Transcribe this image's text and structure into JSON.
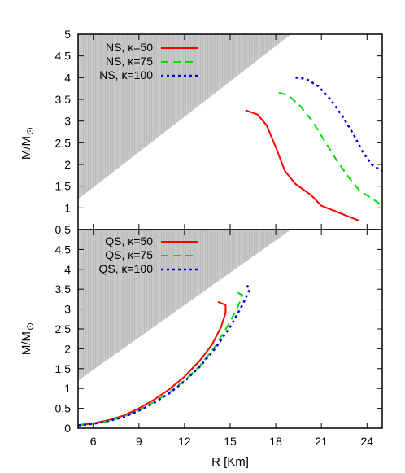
{
  "chart_data": [
    {
      "panel": "top",
      "type": "line",
      "xlim": [
        5,
        25
      ],
      "ylim": [
        0.5,
        5
      ],
      "y_ticks": [
        "0.5",
        "1",
        "1.5",
        "2",
        "2.5",
        "3",
        "3.5",
        "4",
        "4.5",
        "5"
      ],
      "ylabel_main": "M/M",
      "ylabel_sub": "⊙",
      "legend_position": "top-left",
      "shaded_region": {
        "upper_left_boundary": [
          [
            5,
            1.2
          ],
          [
            19,
            5
          ]
        ]
      },
      "series": [
        {
          "name": "NS, κ=50",
          "color": "#ff0000",
          "dash": "solid",
          "points": [
            [
              16,
              3.25
            ],
            [
              16.8,
              3.15
            ],
            [
              17.4,
              2.9
            ],
            [
              18,
              2.4
            ],
            [
              18.6,
              1.85
            ],
            [
              19.3,
              1.55
            ],
            [
              20.3,
              1.3
            ],
            [
              21,
              1.05
            ],
            [
              23.5,
              0.7
            ]
          ]
        },
        {
          "name": "NS, κ=75",
          "color": "#00dd00",
          "dash": "dashed",
          "points": [
            [
              18.2,
              3.65
            ],
            [
              18.8,
              3.6
            ],
            [
              19.6,
              3.35
            ],
            [
              20.4,
              3.0
            ],
            [
              21.2,
              2.55
            ],
            [
              22.0,
              2.1
            ],
            [
              22.8,
              1.7
            ],
            [
              23.5,
              1.4
            ],
            [
              24.4,
              1.2
            ],
            [
              25,
              1.05
            ]
          ]
        },
        {
          "name": "NS, κ=100",
          "color": "#0000dd",
          "dash": "dotted",
          "points": [
            [
              19.3,
              4.0
            ],
            [
              20.0,
              3.97
            ],
            [
              20.8,
              3.8
            ],
            [
              21.6,
              3.5
            ],
            [
              22.4,
              3.1
            ],
            [
              23.1,
              2.7
            ],
            [
              23.7,
              2.3
            ],
            [
              24.3,
              2.0
            ],
            [
              25,
              1.85
            ]
          ]
        }
      ]
    },
    {
      "panel": "bottom",
      "type": "line",
      "xlabel": "R [Km]",
      "xlim": [
        5,
        25
      ],
      "ylim": [
        0,
        5
      ],
      "x_ticks": [
        "6",
        "9",
        "12",
        "15",
        "18",
        "21",
        "24"
      ],
      "y_ticks": [
        "0",
        "0.5",
        "1",
        "1.5",
        "2",
        "2.5",
        "3",
        "3.5",
        "4",
        "4.5"
      ],
      "ylabel_main": "M/M",
      "ylabel_sub": "⊙",
      "legend_position": "top-left",
      "shaded_region": {
        "upper_left_boundary": [
          [
            5,
            1.2
          ],
          [
            19,
            5
          ]
        ]
      },
      "series": [
        {
          "name": "QS, κ=50",
          "color": "#ff0000",
          "dash": "solid",
          "points": [
            [
              5,
              0.08
            ],
            [
              6,
              0.12
            ],
            [
              7,
              0.2
            ],
            [
              8,
              0.32
            ],
            [
              9,
              0.5
            ],
            [
              10,
              0.72
            ],
            [
              11,
              0.98
            ],
            [
              12,
              1.3
            ],
            [
              13,
              1.7
            ],
            [
              13.8,
              2.1
            ],
            [
              14.4,
              2.55
            ],
            [
              14.7,
              2.9
            ],
            [
              14.7,
              3.1
            ],
            [
              14.2,
              3.18
            ]
          ]
        },
        {
          "name": "QS, κ=75",
          "color": "#00dd00",
          "dash": "dashed",
          "points": [
            [
              5,
              0.07
            ],
            [
              6,
              0.11
            ],
            [
              7,
              0.18
            ],
            [
              8,
              0.29
            ],
            [
              9,
              0.45
            ],
            [
              10,
              0.66
            ],
            [
              11,
              0.9
            ],
            [
              12,
              1.2
            ],
            [
              13,
              1.57
            ],
            [
              14,
              2.05
            ],
            [
              14.8,
              2.55
            ],
            [
              15.5,
              3.05
            ],
            [
              15.8,
              3.35
            ],
            [
              15.3,
              3.45
            ]
          ]
        },
        {
          "name": "QS, κ=100",
          "color": "#0000dd",
          "dash": "dotted",
          "points": [
            [
              5,
              0.07
            ],
            [
              6,
              0.11
            ],
            [
              7,
              0.18
            ],
            [
              8,
              0.28
            ],
            [
              9,
              0.44
            ],
            [
              10,
              0.64
            ],
            [
              11,
              0.88
            ],
            [
              12,
              1.18
            ],
            [
              13,
              1.55
            ],
            [
              14,
              2.0
            ],
            [
              15,
              2.55
            ],
            [
              15.8,
              3.1
            ],
            [
              16.3,
              3.5
            ],
            [
              16.0,
              3.65
            ]
          ]
        }
      ]
    }
  ]
}
